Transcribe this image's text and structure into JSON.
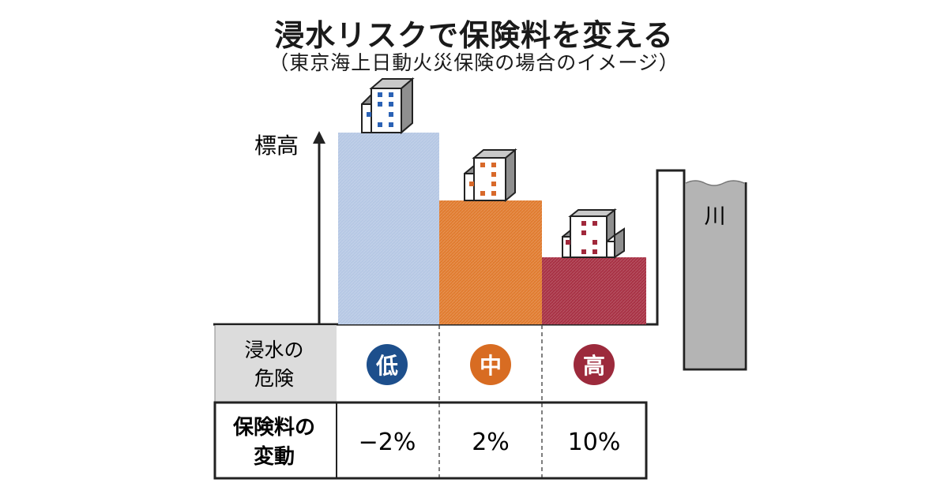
{
  "title": "浸水リスクで保険料を変える",
  "subtitle": "（東京海上日動火災保険の場合のイメージ）",
  "axis_label": "標高",
  "river_label": "川",
  "table": {
    "row1_header_line1": "浸水の",
    "row1_header_line2": "危険",
    "row2_header_line1": "保険料の",
    "row2_header_line2": "変動"
  },
  "levels": [
    {
      "risk": "低",
      "change": "−2%",
      "color": "#b6c8e4",
      "badge_color": "#1d4f8c",
      "window_color": "#2b62b5"
    },
    {
      "risk": "中",
      "change": "2%",
      "color": "#e07c30",
      "badge_color": "#d86c22",
      "window_color": "#d8692a"
    },
    {
      "risk": "高",
      "change": "10%",
      "color": "#a83245",
      "badge_color": "#9c2a3c",
      "window_color": "#a0283b"
    }
  ]
}
